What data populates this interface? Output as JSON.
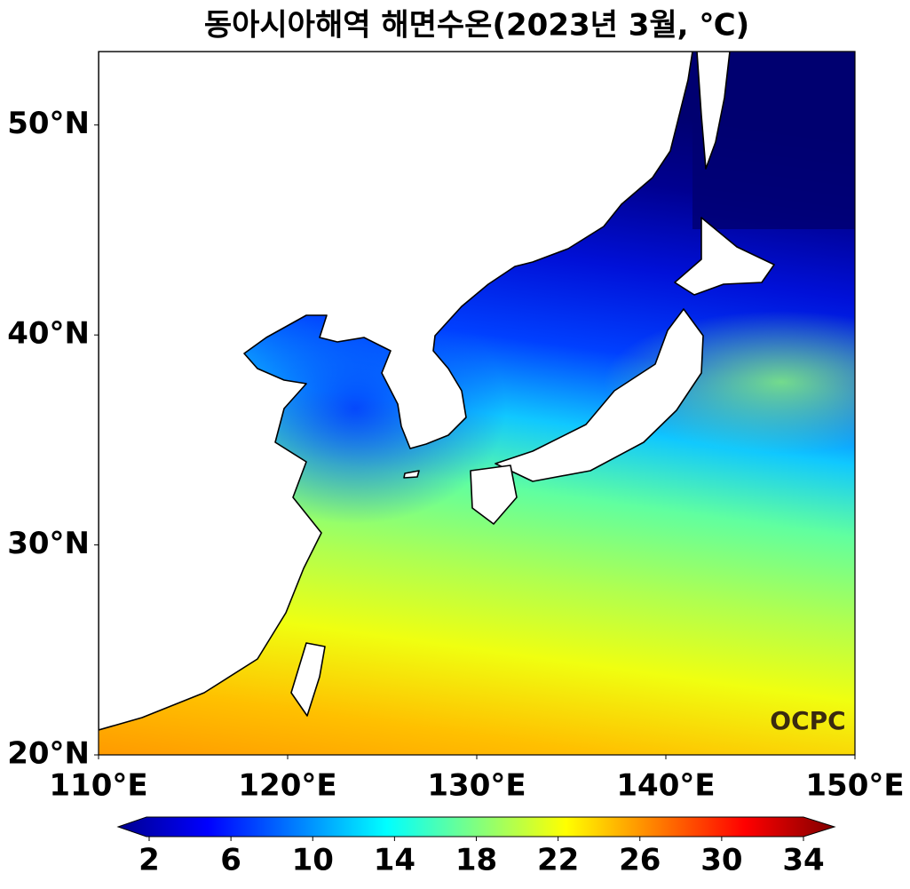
{
  "title": "동아시아해역 해면수온(2023년 3월, ℃)",
  "map": {
    "xlim": [
      110,
      150
    ],
    "ylim": [
      20,
      53.5
    ],
    "xticks": [
      {
        "value": 110,
        "label": "110°E"
      },
      {
        "value": 120,
        "label": "120°E"
      },
      {
        "value": 130,
        "label": "130°E"
      },
      {
        "value": 140,
        "label": "140°E"
      },
      {
        "value": 150,
        "label": "150°E"
      }
    ],
    "yticks": [
      {
        "value": 20,
        "label": "20°N"
      },
      {
        "value": 30,
        "label": "30°N"
      },
      {
        "value": 40,
        "label": "40°N"
      },
      {
        "value": 50,
        "label": "50°N"
      }
    ],
    "watermark": "OCPC"
  },
  "colorbar": {
    "ticks": [
      2,
      6,
      10,
      14,
      18,
      22,
      26,
      30,
      34
    ]
  }
}
